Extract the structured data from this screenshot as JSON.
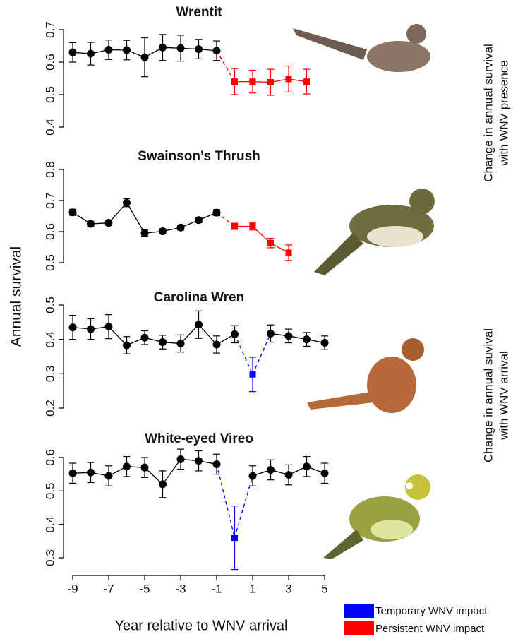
{
  "figure": {
    "ylabel": "Annual survival",
    "side_labels": [
      [
        "Change in annual survival",
        "with WNV presence"
      ],
      [
        "Change in annual suvival",
        "with WNV arrival"
      ]
    ],
    "legend": [
      {
        "label": "Temporary WNV impact",
        "color": "#0000ff"
      },
      {
        "label": "Persistent WNV impact",
        "color": "#ff0000"
      }
    ]
  },
  "chart_data": [
    {
      "type": "line",
      "title": "Wrentit",
      "x": [
        -9,
        -8,
        -7,
        -6,
        -5,
        -4,
        -3,
        -2,
        -1,
        0,
        1,
        2,
        3,
        4
      ],
      "xlim": [
        -9.3,
        5.3
      ],
      "ylim": [
        0.4,
        0.7
      ],
      "yticks": [
        0.4,
        0.5,
        0.6,
        0.7
      ],
      "series": [
        {
          "color": "#000000",
          "marker": "circle",
          "values": [
            0.63,
            0.626,
            0.638,
            0.637,
            0.615,
            0.645,
            0.643,
            0.64,
            0.635,
            null,
            null,
            null,
            null,
            null
          ],
          "errors": [
            0.03,
            0.035,
            0.03,
            0.03,
            0.06,
            0.04,
            0.04,
            0.03,
            0.03,
            null,
            null,
            null,
            null,
            null
          ]
        },
        {
          "color": "#ff0000",
          "marker": "square",
          "values": [
            null,
            null,
            null,
            null,
            null,
            null,
            null,
            null,
            null,
            0.54,
            0.54,
            0.538,
            0.548,
            0.54
          ],
          "errors": [
            null,
            null,
            null,
            null,
            null,
            null,
            null,
            null,
            null,
            0.04,
            0.035,
            0.04,
            0.04,
            0.038
          ]
        }
      ]
    },
    {
      "type": "line",
      "title": "Swainson’s Thrush",
      "x": [
        -9,
        -8,
        -7,
        -6,
        -5,
        -4,
        -3,
        -2,
        -1,
        0,
        1,
        2,
        3
      ],
      "xlim": [
        -9.3,
        5.3
      ],
      "ylim": [
        0.5,
        0.8
      ],
      "yticks": [
        0.5,
        0.6,
        0.7,
        0.8
      ],
      "series": [
        {
          "color": "#000000",
          "marker": "circle",
          "values": [
            0.662,
            0.625,
            0.628,
            0.693,
            0.595,
            0.601,
            0.613,
            0.637,
            0.661,
            null,
            null,
            null,
            null
          ],
          "errors": [
            0.01,
            0.008,
            0.008,
            0.013,
            0.01,
            0.008,
            0.008,
            0.008,
            0.01,
            null,
            null,
            null,
            null
          ]
        },
        {
          "color": "#ff0000",
          "marker": "square",
          "values": [
            null,
            null,
            null,
            null,
            null,
            null,
            null,
            null,
            null,
            0.617,
            0.617,
            0.563,
            0.532
          ],
          "errors": [
            null,
            null,
            null,
            null,
            null,
            null,
            null,
            null,
            null,
            0.01,
            0.012,
            0.015,
            0.025
          ]
        }
      ]
    },
    {
      "type": "line",
      "title": "Carolina Wren",
      "x": [
        -9,
        -8,
        -7,
        -6,
        -5,
        -4,
        -3,
        -2,
        -1,
        0,
        1,
        2,
        3,
        4,
        5
      ],
      "xlim": [
        -9.3,
        5.3
      ],
      "ylim": [
        0.2,
        0.5
      ],
      "yticks": [
        0.2,
        0.3,
        0.4,
        0.5
      ],
      "series": [
        {
          "color": "#000000",
          "marker": "circle",
          "values": [
            0.435,
            0.43,
            0.437,
            0.383,
            0.405,
            0.392,
            0.388,
            0.443,
            0.385,
            0.415,
            null,
            0.417,
            0.41,
            0.4,
            0.39
          ],
          "errors": [
            0.035,
            0.03,
            0.035,
            0.025,
            0.02,
            0.02,
            0.025,
            0.04,
            0.025,
            0.025,
            null,
            0.025,
            0.02,
            0.02,
            0.02
          ]
        },
        {
          "color": "#0000ff",
          "marker": "square",
          "values": [
            null,
            null,
            null,
            null,
            null,
            null,
            null,
            null,
            null,
            null,
            0.298,
            null,
            null,
            null,
            null
          ],
          "errors": [
            null,
            null,
            null,
            null,
            null,
            null,
            null,
            null,
            null,
            null,
            0.05,
            null,
            null,
            null,
            null
          ]
        }
      ]
    },
    {
      "type": "line",
      "title": "White-eyed Vireo",
      "x": [
        -9,
        -8,
        -7,
        -6,
        -5,
        -4,
        -3,
        -2,
        -1,
        0,
        1,
        2,
        3,
        4,
        5
      ],
      "xlim": [
        -9.3,
        5.3
      ],
      "ylim": [
        0.28,
        0.62
      ],
      "yticks": [
        0.3,
        0.4,
        0.5,
        0.6
      ],
      "xticks": [
        -9,
        -7,
        -5,
        -3,
        -1,
        1,
        3,
        5
      ],
      "xlabel": "Year relative to WNV arrival",
      "series": [
        {
          "color": "#000000",
          "marker": "circle",
          "values": [
            0.553,
            0.555,
            0.545,
            0.573,
            0.57,
            0.52,
            0.595,
            0.59,
            0.58,
            null,
            0.545,
            0.563,
            0.548,
            0.573,
            0.553
          ],
          "errors": [
            0.03,
            0.03,
            0.03,
            0.03,
            0.03,
            0.04,
            0.03,
            0.03,
            0.03,
            null,
            0.03,
            0.03,
            0.03,
            0.03,
            0.03
          ]
        },
        {
          "color": "#0000ff",
          "marker": "square",
          "values": [
            null,
            null,
            null,
            null,
            null,
            null,
            null,
            null,
            null,
            0.36,
            null,
            null,
            null,
            null,
            null
          ],
          "errors": [
            null,
            null,
            null,
            null,
            null,
            null,
            null,
            null,
            null,
            0.095,
            null,
            null,
            null,
            null,
            null
          ]
        }
      ]
    }
  ]
}
